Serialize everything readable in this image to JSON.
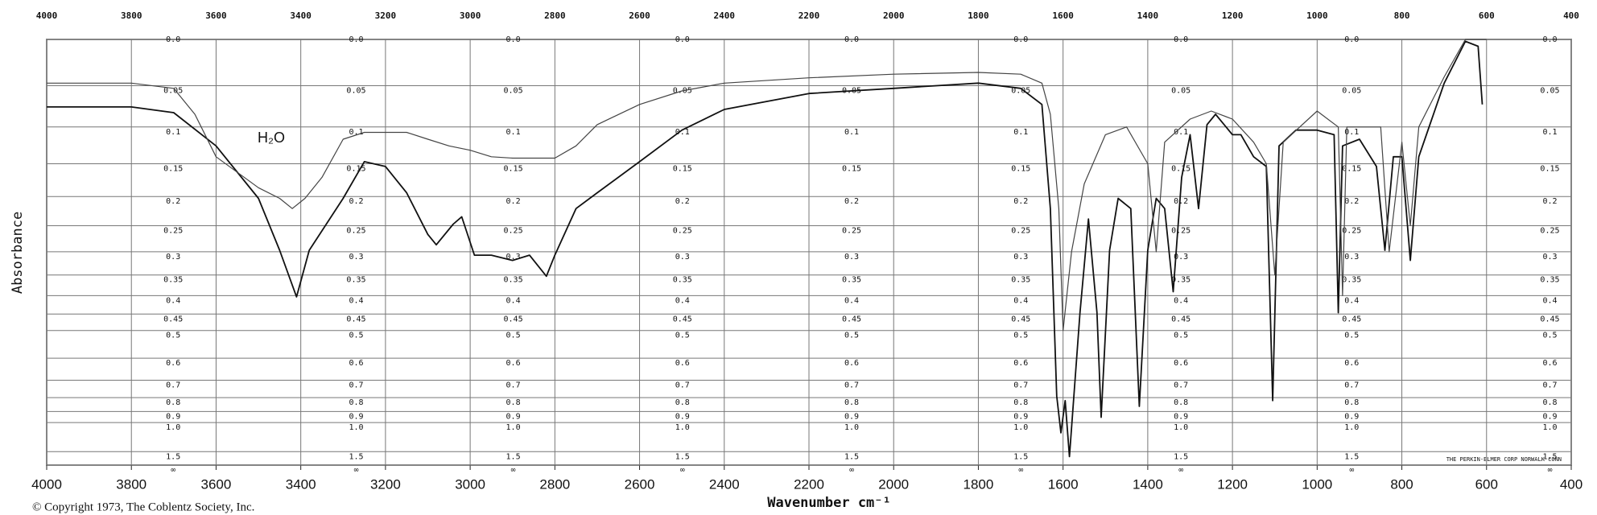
{
  "chart_data": {
    "type": "line",
    "y_label": "Absorbance",
    "x_label": "Wavenumber cm⁻¹",
    "annotation": "H₂O",
    "copyright": "© Copyright 1973, The Coblentz Society, Inc.",
    "maker": "THE PERKIN-ELMER CORP NORWALK CONN",
    "yscale": "absorbance",
    "grid": true,
    "xlim": [
      4000,
      400
    ],
    "xticks": [
      4000,
      3800,
      3600,
      3400,
      3200,
      3000,
      2800,
      2600,
      2400,
      2200,
      2000,
      1800,
      1600,
      1400,
      1200,
      1000,
      800,
      600,
      400
    ],
    "ylim": [
      0,
      null
    ],
    "yticks": [
      {
        "value": 0,
        "label": "0.0"
      },
      0.05,
      0.1,
      0.15,
      0.2,
      0.25,
      0.3,
      0.35,
      0.4,
      0.45,
      0.5,
      0.6,
      0.7,
      0.8,
      0.9,
      {
        "value": 1,
        "label": "1.0"
      },
      1.5,
      {
        "value": null,
        "label": "∞"
      }
    ],
    "series": [
      {
        "color": "#111111",
        "x": [
          4000,
          3800,
          3700,
          3600,
          3500,
          3450,
          3410,
          3380,
          3300,
          3250,
          3200,
          3150,
          3100,
          3080,
          3040,
          3020,
          2990,
          2950,
          2900,
          2860,
          2820,
          2800,
          2750,
          2700,
          2600,
          2500,
          2400,
          2200,
          2000,
          1800,
          1700,
          1650,
          1630,
          1615,
          1605,
          1595,
          1585,
          1560,
          1540,
          1520,
          1510,
          1490,
          1470,
          1440,
          1420,
          1400,
          1380,
          1360,
          1340,
          1320,
          1300,
          1280,
          1260,
          1240,
          1200,
          1180,
          1150,
          1120,
          1105,
          1090,
          1050,
          1000,
          960,
          950,
          940,
          900,
          860,
          840,
          820,
          800,
          780,
          760,
          700,
          650,
          620,
          610
        ],
        "values": [
          0.075,
          0.075,
          0.082,
          0.125,
          0.203,
          0.297,
          0.403,
          0.297,
          0.203,
          0.147,
          0.154,
          0.194,
          0.266,
          0.286,
          0.247,
          0.234,
          0.307,
          0.307,
          0.318,
          0.307,
          0.353,
          0.307,
          0.22,
          0.194,
          0.147,
          0.104,
          0.078,
          0.059,
          0.053,
          0.047,
          0.053,
          0.072,
          0.22,
          0.79,
          1.12,
          0.82,
          1.7,
          0.446,
          0.238,
          0.446,
          0.95,
          0.297,
          0.203,
          0.22,
          0.86,
          0.297,
          0.203,
          0.22,
          0.39,
          0.17,
          0.11,
          0.22,
          0.097,
          0.084,
          0.11,
          0.11,
          0.14,
          0.154,
          0.82,
          0.125,
          0.104,
          0.104,
          0.11,
          0.446,
          0.125,
          0.116,
          0.154,
          0.297,
          0.14,
          0.14,
          0.318,
          0.14,
          0.047,
          0.002,
          0.007,
          0.072
        ]
      },
      {
        "color": "#444444",
        "x": [
          4000,
          3800,
          3700,
          3650,
          3600,
          3500,
          3450,
          3420,
          3390,
          3350,
          3300,
          3250,
          3150,
          3100,
          3050,
          3000,
          2950,
          2900,
          2800,
          2750,
          2700,
          2600,
          2500,
          2400,
          2200,
          2000,
          1800,
          1700,
          1650,
          1630,
          1610,
          1600,
          1580,
          1550,
          1500,
          1450,
          1400,
          1380,
          1360,
          1300,
          1250,
          1200,
          1150,
          1120,
          1100,
          1080,
          1000,
          950,
          940,
          930,
          850,
          830,
          800,
          780,
          760,
          700,
          650,
          600
        ],
        "values": [
          0.047,
          0.047,
          0.053,
          0.084,
          0.14,
          0.186,
          0.203,
          0.22,
          0.203,
          0.17,
          0.116,
          0.107,
          0.107,
          0.116,
          0.125,
          0.131,
          0.14,
          0.142,
          0.142,
          0.125,
          0.097,
          0.072,
          0.056,
          0.047,
          0.041,
          0.037,
          0.035,
          0.037,
          0.047,
          0.084,
          0.22,
          0.5,
          0.3,
          0.18,
          0.11,
          0.1,
          0.15,
          0.3,
          0.12,
          0.09,
          0.08,
          0.09,
          0.12,
          0.15,
          0.35,
          0.12,
          0.08,
          0.1,
          0.4,
          0.1,
          0.1,
          0.3,
          0.12,
          0.25,
          0.1,
          0.04,
          0,
          0
        ]
      }
    ]
  }
}
